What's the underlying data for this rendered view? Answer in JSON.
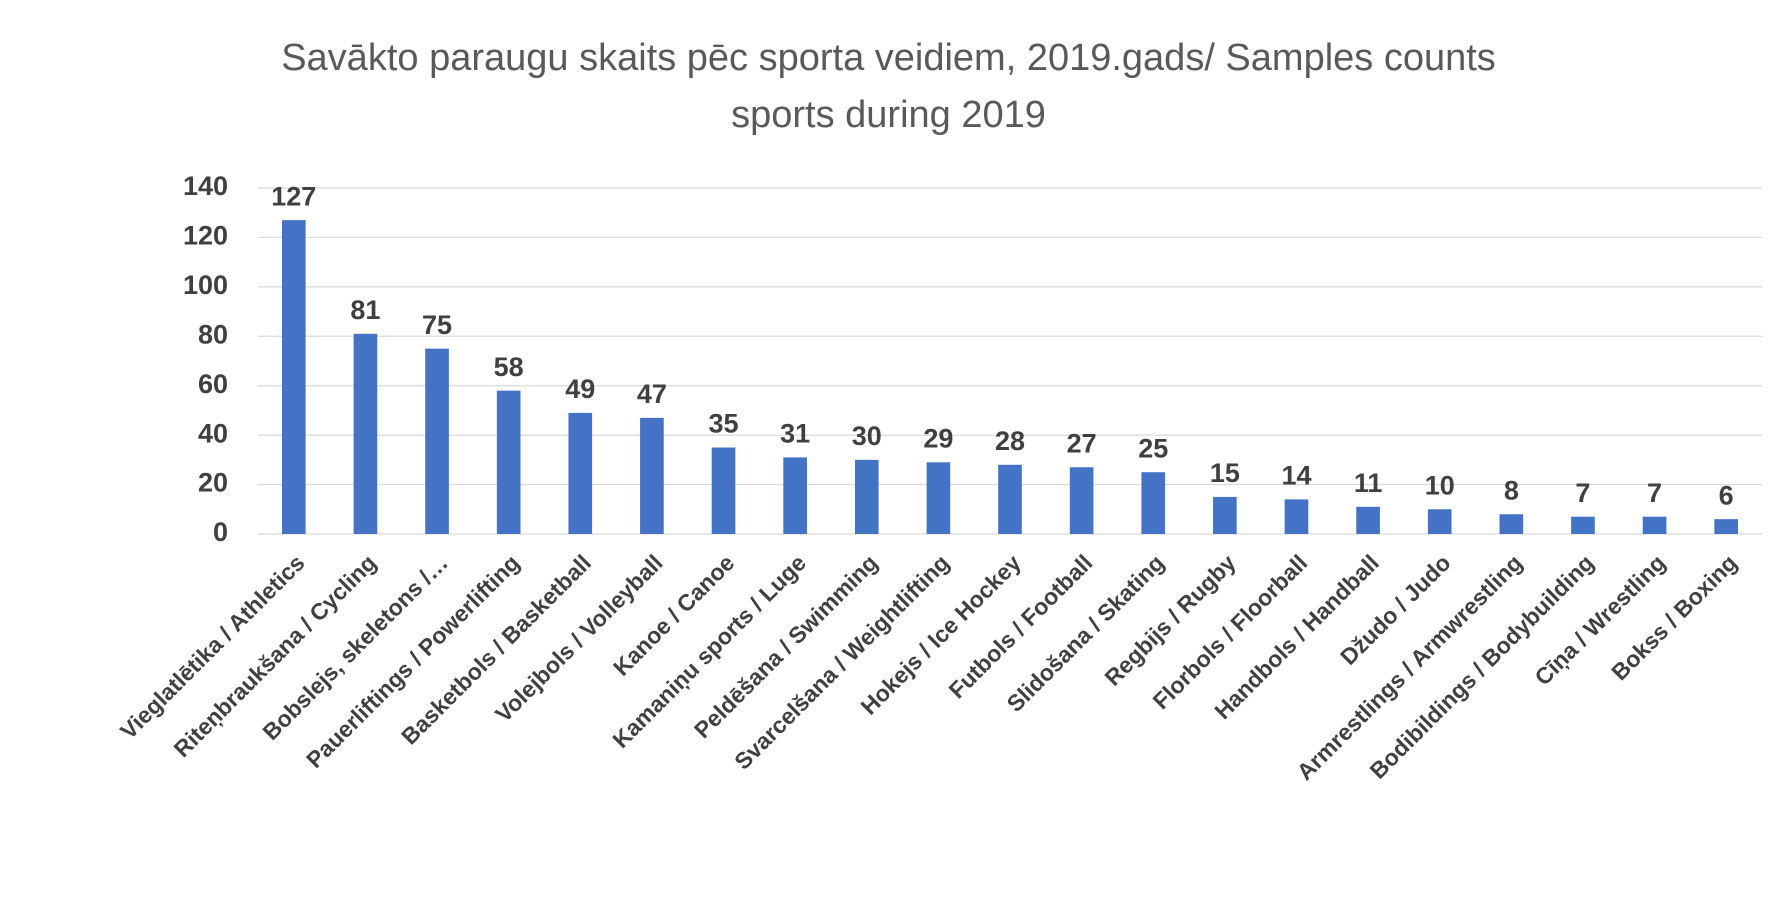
{
  "chart_data": {
    "type": "bar",
    "title": "Savākto paraugu skaits pēc sporta veidiem, 2019.gads/ Samples counts\nsports during 2019",
    "categories": [
      "Vieglatlētika / Athletics",
      "Riteņbraukšana / Cycling",
      "Bobslejs, skeletons /…",
      "Pauerliftings / Powerlifting",
      "Basketbols / Basketball",
      "Volejbols / Volleyball",
      "Kanoe / Canoe",
      "Kamaniņu sports / Luge",
      "Peldēšana / Swimming",
      "Svarcelšana / Weightlifting",
      "Hokejs / Ice Hockey",
      "Futbols / Football",
      "Slidošana / Skating",
      "Regbijs / Rugby",
      "Florbols / Floorball",
      "Handbols / Handball",
      "Džudo / Judo",
      "Armrestlings / Armwrestling",
      "Bodibildings / Bodybuilding",
      "Cīņa / Wrestling",
      "Bokss / Boxing"
    ],
    "values": [
      127,
      81,
      75,
      58,
      49,
      47,
      35,
      31,
      30,
      29,
      28,
      27,
      25,
      15,
      14,
      11,
      10,
      8,
      7,
      7,
      6
    ],
    "color": "#4472c4",
    "ylim": [
      0,
      140
    ],
    "yticks": [
      0,
      20,
      40,
      60,
      80,
      100,
      120,
      140
    ],
    "grid": true
  }
}
